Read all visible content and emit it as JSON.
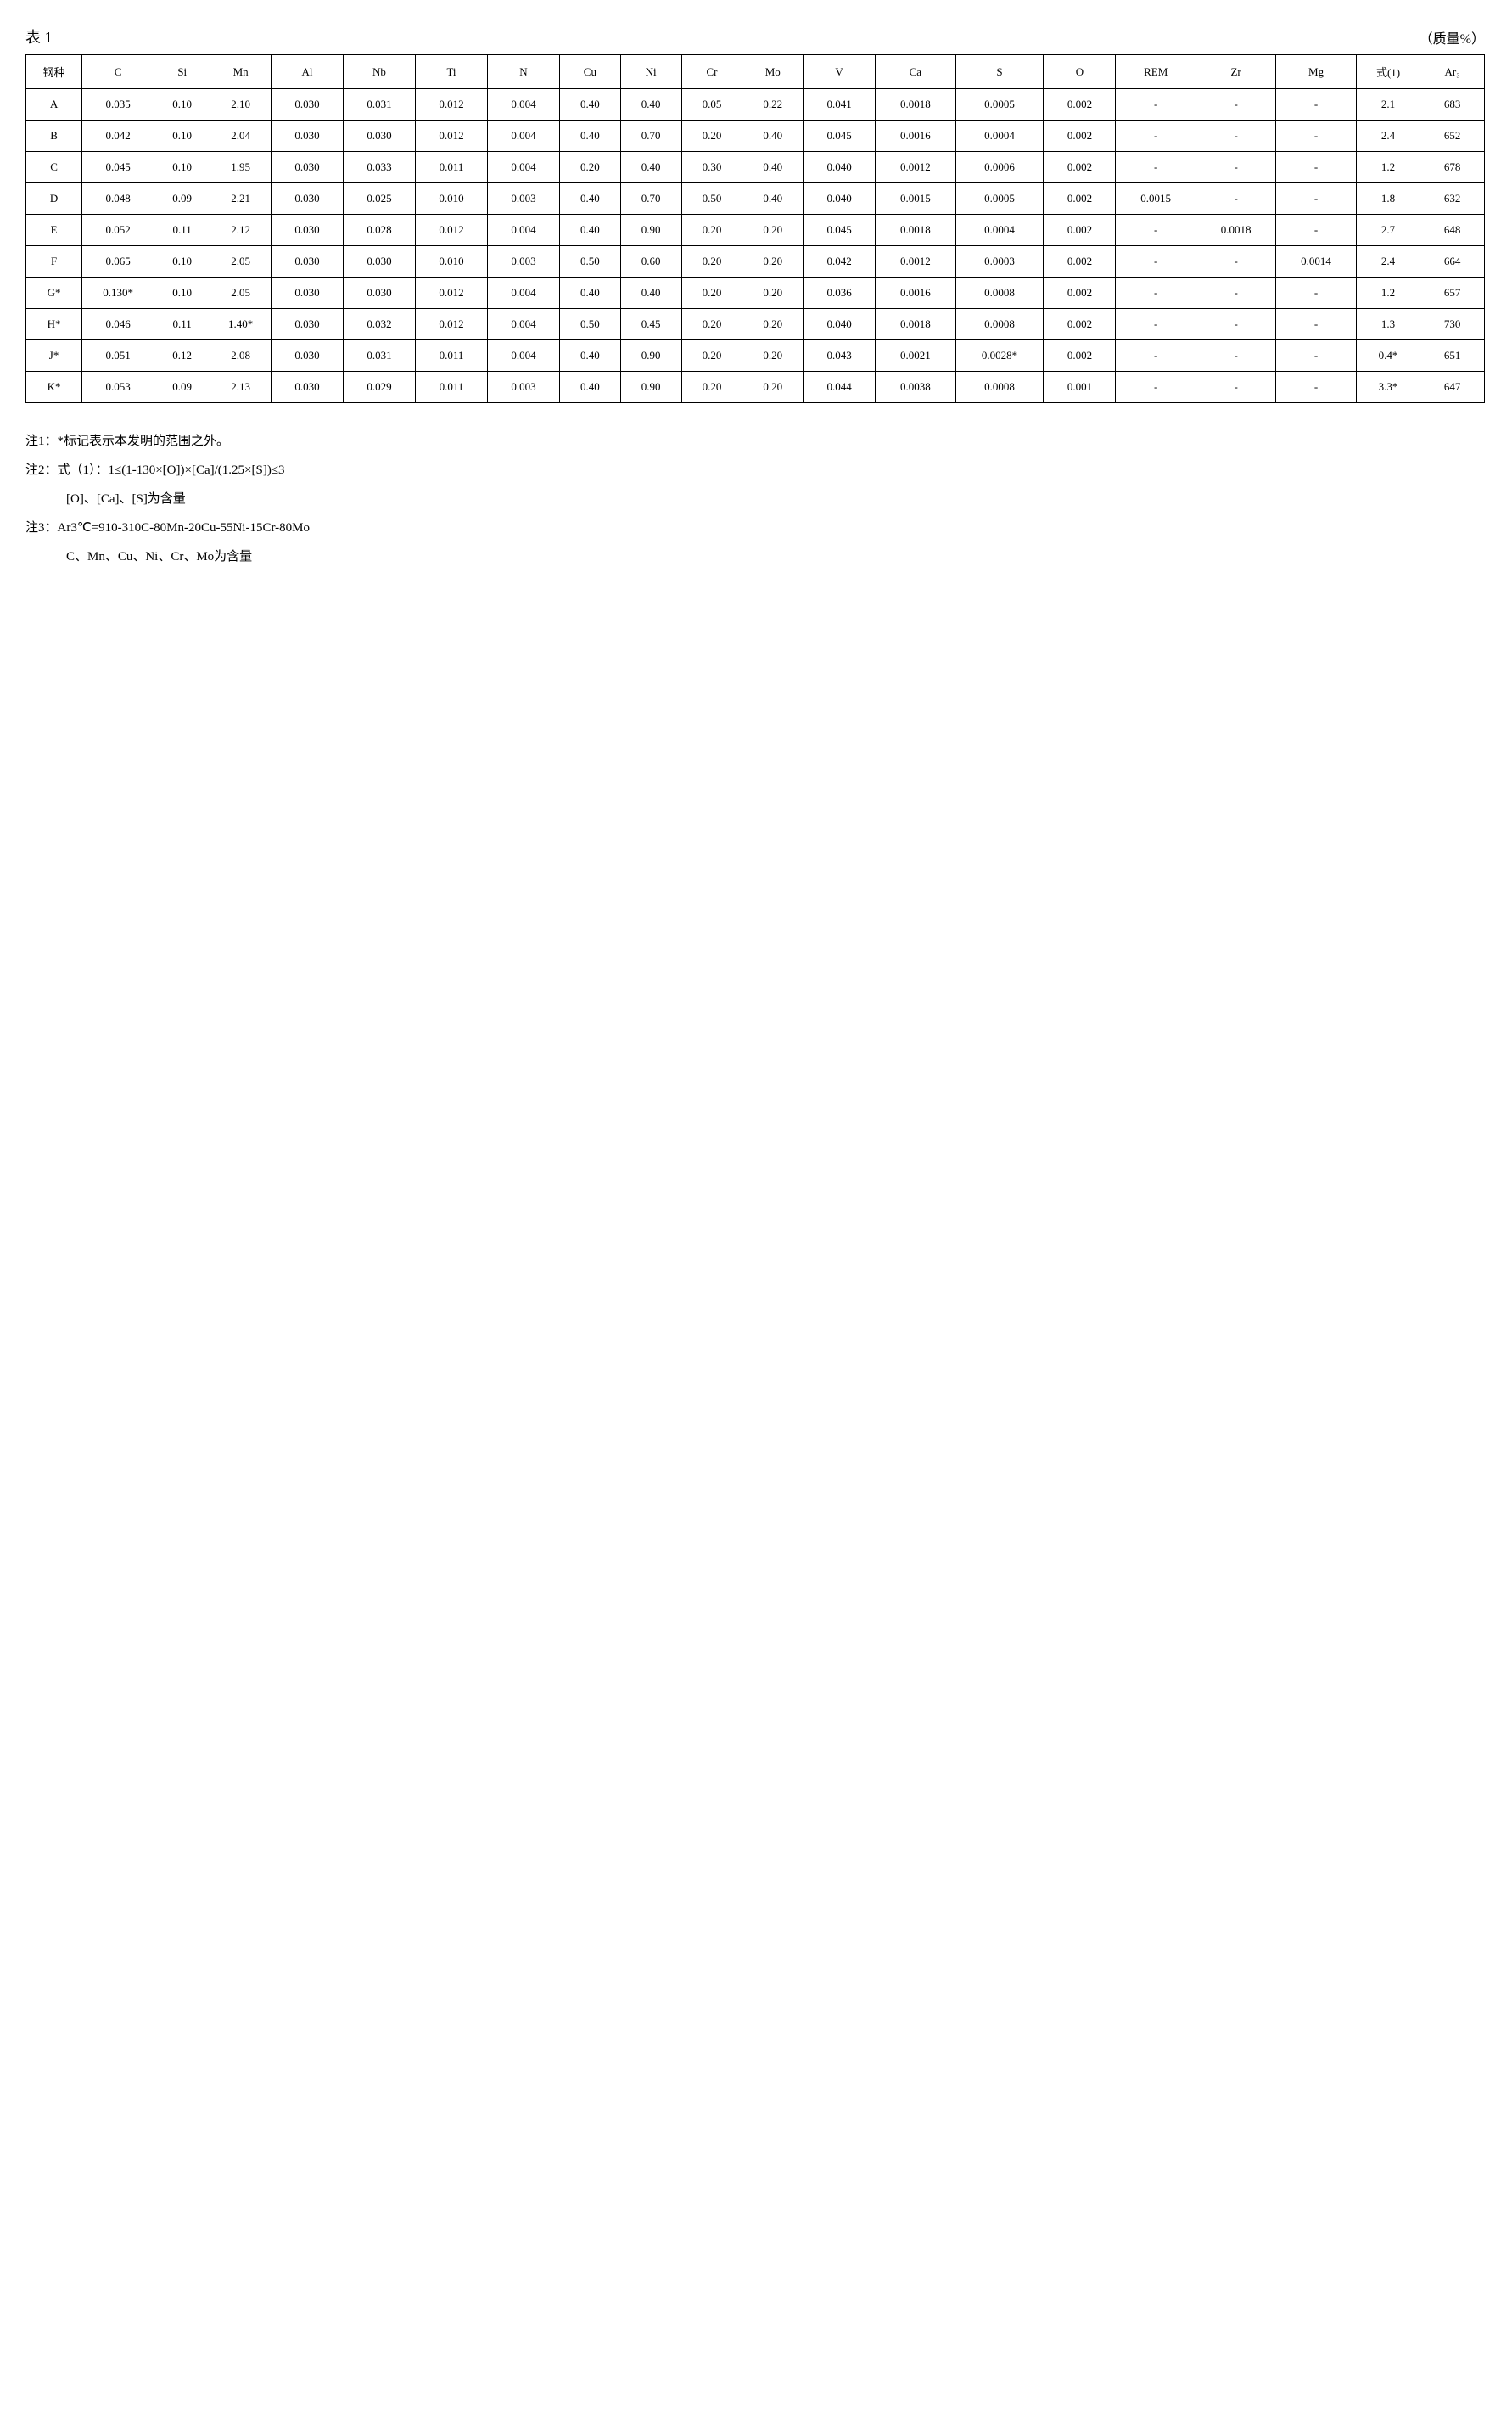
{
  "title": "表 1",
  "unit": "（质量%）",
  "columns": [
    {
      "key": "steel",
      "label": "钢种",
      "cls": "col-steel"
    },
    {
      "key": "C",
      "label": "C",
      "cls": "col-c"
    },
    {
      "key": "Si",
      "label": "Si",
      "cls": "col-si"
    },
    {
      "key": "Mn",
      "label": "Mn",
      "cls": "col-mn"
    },
    {
      "key": "Al",
      "label": "Al",
      "cls": "col-al"
    },
    {
      "key": "Nb",
      "label": "Nb",
      "cls": "col-nb"
    },
    {
      "key": "Ti",
      "label": "Ti",
      "cls": "col-ti"
    },
    {
      "key": "N",
      "label": "N",
      "cls": "col-n"
    },
    {
      "key": "Cu",
      "label": "Cu",
      "cls": "col-cu"
    },
    {
      "key": "Ni",
      "label": "Ni",
      "cls": "col-ni"
    },
    {
      "key": "Cr",
      "label": "Cr",
      "cls": "col-cr"
    },
    {
      "key": "Mo",
      "label": "Mo",
      "cls": "col-mo"
    },
    {
      "key": "V",
      "label": "V",
      "cls": "col-v"
    },
    {
      "key": "Ca",
      "label": "Ca",
      "cls": "col-ca"
    },
    {
      "key": "S",
      "label": "S",
      "cls": "col-s"
    },
    {
      "key": "O",
      "label": "O",
      "cls": "col-o"
    },
    {
      "key": "REM",
      "label": "REM",
      "cls": "col-rem"
    },
    {
      "key": "Zr",
      "label": "Zr",
      "cls": "col-zr"
    },
    {
      "key": "Mg",
      "label": "Mg",
      "cls": "col-mg"
    },
    {
      "key": "eq1",
      "label": "式(1)",
      "cls": "col-eq"
    },
    {
      "key": "Ar3",
      "label": "Ar₃",
      "cls": "col-ar"
    }
  ],
  "rows": [
    {
      "steel": "A",
      "C": "0.035",
      "Si": "0.10",
      "Mn": "2.10",
      "Al": "0.030",
      "Nb": "0.031",
      "Ti": "0.012",
      "N": "0.004",
      "Cu": "0.40",
      "Ni": "0.40",
      "Cr": "0.05",
      "Mo": "0.22",
      "V": "0.041",
      "Ca": "0.0018",
      "S": "0.0005",
      "O": "0.002",
      "REM": "-",
      "Zr": "-",
      "Mg": "-",
      "eq1": "2.1",
      "Ar3": "683"
    },
    {
      "steel": "B",
      "C": "0.042",
      "Si": "0.10",
      "Mn": "2.04",
      "Al": "0.030",
      "Nb": "0.030",
      "Ti": "0.012",
      "N": "0.004",
      "Cu": "0.40",
      "Ni": "0.70",
      "Cr": "0.20",
      "Mo": "0.40",
      "V": "0.045",
      "Ca": "0.0016",
      "S": "0.0004",
      "O": "0.002",
      "REM": "-",
      "Zr": "-",
      "Mg": "-",
      "eq1": "2.4",
      "Ar3": "652"
    },
    {
      "steel": "C",
      "C": "0.045",
      "Si": "0.10",
      "Mn": "1.95",
      "Al": "0.030",
      "Nb": "0.033",
      "Ti": "0.011",
      "N": "0.004",
      "Cu": "0.20",
      "Ni": "0.40",
      "Cr": "0.30",
      "Mo": "0.40",
      "V": "0.040",
      "Ca": "0.0012",
      "S": "0.0006",
      "O": "0.002",
      "REM": "-",
      "Zr": "-",
      "Mg": "-",
      "eq1": "1.2",
      "Ar3": "678"
    },
    {
      "steel": "D",
      "C": "0.048",
      "Si": "0.09",
      "Mn": "2.21",
      "Al": "0.030",
      "Nb": "0.025",
      "Ti": "0.010",
      "N": "0.003",
      "Cu": "0.40",
      "Ni": "0.70",
      "Cr": "0.50",
      "Mo": "0.40",
      "V": "0.040",
      "Ca": "0.0015",
      "S": "0.0005",
      "O": "0.002",
      "REM": "0.0015",
      "Zr": "-",
      "Mg": "-",
      "eq1": "1.8",
      "Ar3": "632"
    },
    {
      "steel": "E",
      "C": "0.052",
      "Si": "0.11",
      "Mn": "2.12",
      "Al": "0.030",
      "Nb": "0.028",
      "Ti": "0.012",
      "N": "0.004",
      "Cu": "0.40",
      "Ni": "0.90",
      "Cr": "0.20",
      "Mo": "0.20",
      "V": "0.045",
      "Ca": "0.0018",
      "S": "0.0004",
      "O": "0.002",
      "REM": "-",
      "Zr": "0.0018",
      "Mg": "-",
      "eq1": "2.7",
      "Ar3": "648"
    },
    {
      "steel": "F",
      "C": "0.065",
      "Si": "0.10",
      "Mn": "2.05",
      "Al": "0.030",
      "Nb": "0.030",
      "Ti": "0.010",
      "N": "0.003",
      "Cu": "0.50",
      "Ni": "0.60",
      "Cr": "0.20",
      "Mo": "0.20",
      "V": "0.042",
      "Ca": "0.0012",
      "S": "0.0003",
      "O": "0.002",
      "REM": "-",
      "Zr": "-",
      "Mg": "0.0014",
      "eq1": "2.4",
      "Ar3": "664"
    },
    {
      "steel": "G*",
      "C": "0.130*",
      "Si": "0.10",
      "Mn": "2.05",
      "Al": "0.030",
      "Nb": "0.030",
      "Ti": "0.012",
      "N": "0.004",
      "Cu": "0.40",
      "Ni": "0.40",
      "Cr": "0.20",
      "Mo": "0.20",
      "V": "0.036",
      "Ca": "0.0016",
      "S": "0.0008",
      "O": "0.002",
      "REM": "-",
      "Zr": "-",
      "Mg": "-",
      "eq1": "1.2",
      "Ar3": "657"
    },
    {
      "steel": "H*",
      "C": "0.046",
      "Si": "0.11",
      "Mn": "1.40*",
      "Al": "0.030",
      "Nb": "0.032",
      "Ti": "0.012",
      "N": "0.004",
      "Cu": "0.50",
      "Ni": "0.45",
      "Cr": "0.20",
      "Mo": "0.20",
      "V": "0.040",
      "Ca": "0.0018",
      "S": "0.0008",
      "O": "0.002",
      "REM": "-",
      "Zr": "-",
      "Mg": "-",
      "eq1": "1.3",
      "Ar3": "730"
    },
    {
      "steel": "J*",
      "C": "0.051",
      "Si": "0.12",
      "Mn": "2.08",
      "Al": "0.030",
      "Nb": "0.031",
      "Ti": "0.011",
      "N": "0.004",
      "Cu": "0.40",
      "Ni": "0.90",
      "Cr": "0.20",
      "Mo": "0.20",
      "V": "0.043",
      "Ca": "0.0021",
      "S": "0.0028*",
      "O": "0.002",
      "REM": "-",
      "Zr": "-",
      "Mg": "-",
      "eq1": "0.4*",
      "Ar3": "651"
    },
    {
      "steel": "K*",
      "C": "0.053",
      "Si": "0.09",
      "Mn": "2.13",
      "Al": "0.030",
      "Nb": "0.029",
      "Ti": "0.011",
      "N": "0.003",
      "Cu": "0.40",
      "Ni": "0.90",
      "Cr": "0.20",
      "Mo": "0.20",
      "V": "0.044",
      "Ca": "0.0038",
      "S": "0.0008",
      "O": "0.001",
      "REM": "-",
      "Zr": "-",
      "Mg": "-",
      "eq1": "3.3*",
      "Ar3": "647"
    }
  ],
  "notes": {
    "n1": "注1：*标记表示本发明的范围之外。",
    "n2a": "注2：式（1）：1≤(1-130×[O])×[Ca]/(1.25×[S])≤3",
    "n2b": "[O]、[Ca]、[S]为含量",
    "n3a": "注3：Ar3℃=910-310C-80Mn-20Cu-55Ni-15Cr-80Mo",
    "n3b": "C、Mn、Cu、Ni、Cr、Mo为含量"
  }
}
